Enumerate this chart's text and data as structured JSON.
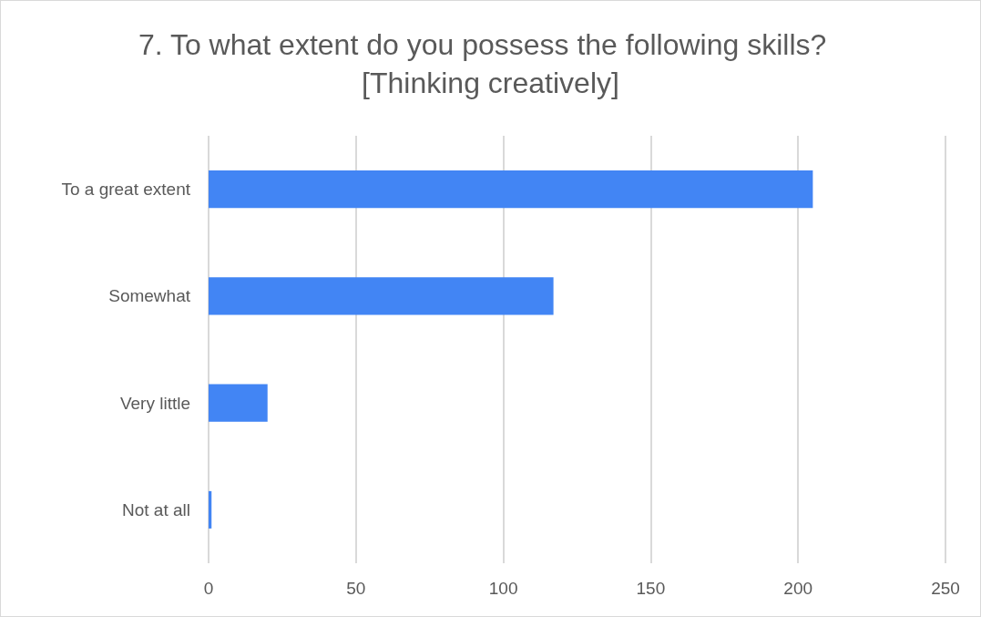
{
  "chart_data": {
    "type": "bar",
    "orientation": "horizontal",
    "title": "7. To what extent do you possess the following skills?  [Thinking creatively]",
    "categories": [
      "To a great extent",
      "Somewhat",
      "Very little",
      "Not at all"
    ],
    "values": [
      205,
      117,
      20,
      1
    ],
    "color": "#4285f4",
    "xlim": [
      0,
      250
    ],
    "xticks": [
      0,
      50,
      100,
      150,
      200,
      250
    ],
    "grid": "x"
  }
}
